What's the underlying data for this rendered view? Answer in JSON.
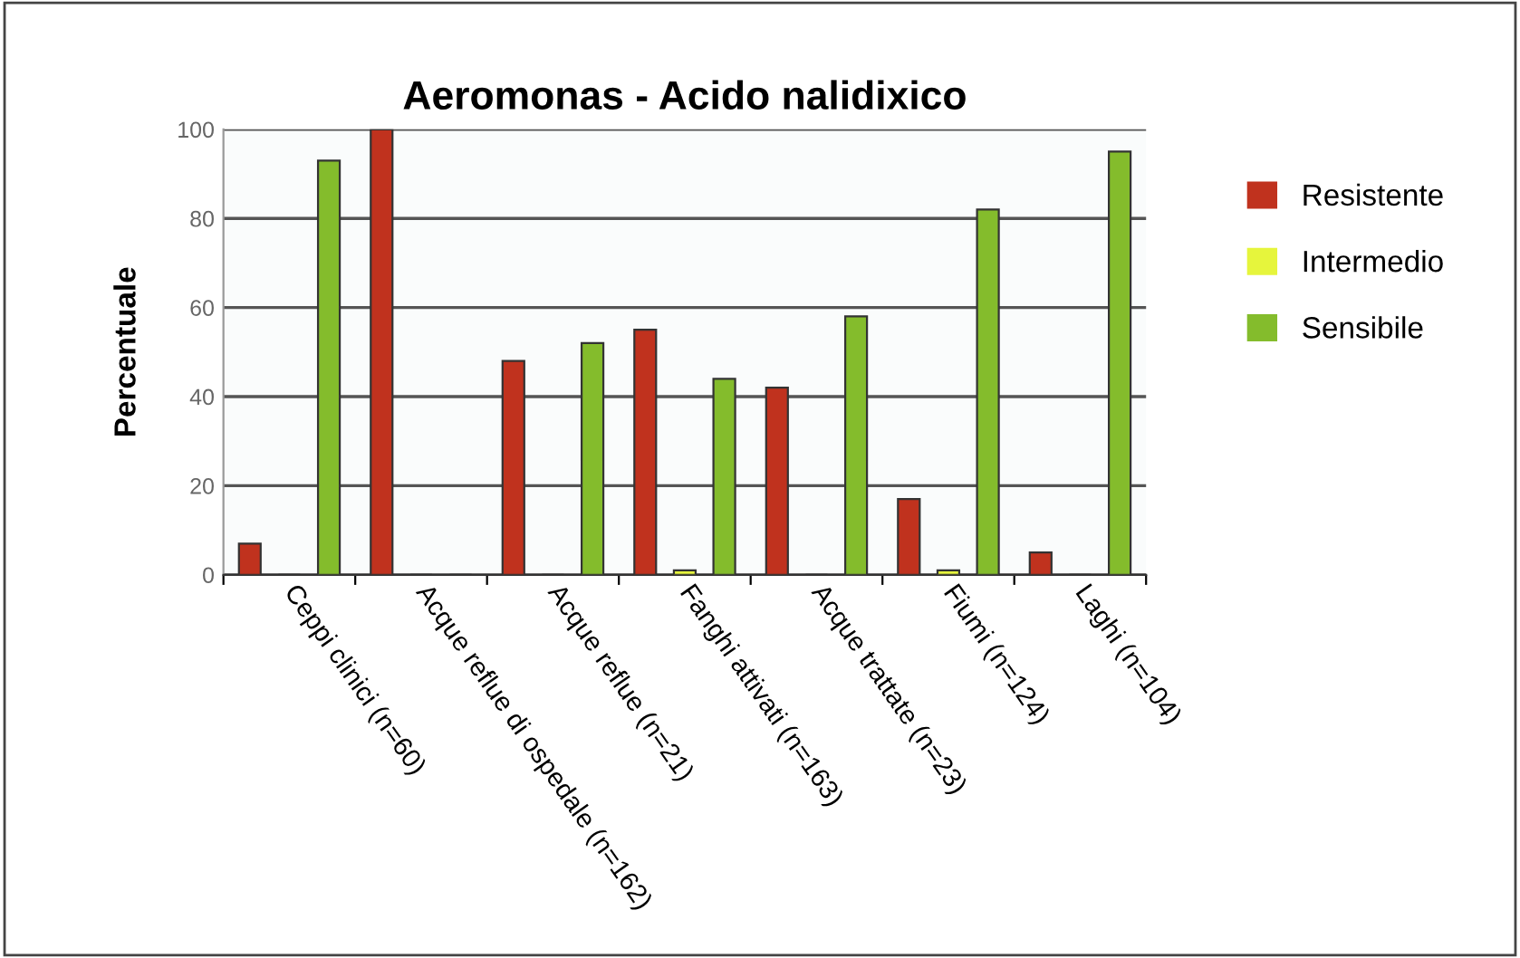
{
  "chart_data": {
    "type": "bar",
    "title": "Aeromonas - Acido nalidixico",
    "ylabel": "Percentuale",
    "categories": [
      "Ceppi clinici (n=60)",
      "Acque reflue di ospedale (n=162)",
      "Acque reflue (n=21)",
      "Fanghi attivati (n=163)",
      "Acque trattate (n=23)",
      "Fiumi (n=124)",
      "Laghi (n=104)"
    ],
    "series": [
      {
        "name": "Resistente",
        "color": "#c0321e",
        "values": [
          7,
          100,
          48,
          55,
          42,
          17,
          5
        ]
      },
      {
        "name": "Intermedio",
        "color": "#e6f53c",
        "values": [
          0,
          0,
          0,
          1,
          0,
          1,
          0
        ]
      },
      {
        "name": "Sensibile",
        "color": "#84bc2c",
        "values": [
          93,
          0,
          52,
          44,
          58,
          82,
          95
        ]
      }
    ],
    "ylim": [
      0,
      100
    ],
    "yticks": [
      0,
      20,
      40,
      60,
      80,
      100
    ],
    "grid": "y",
    "legend": "right"
  }
}
